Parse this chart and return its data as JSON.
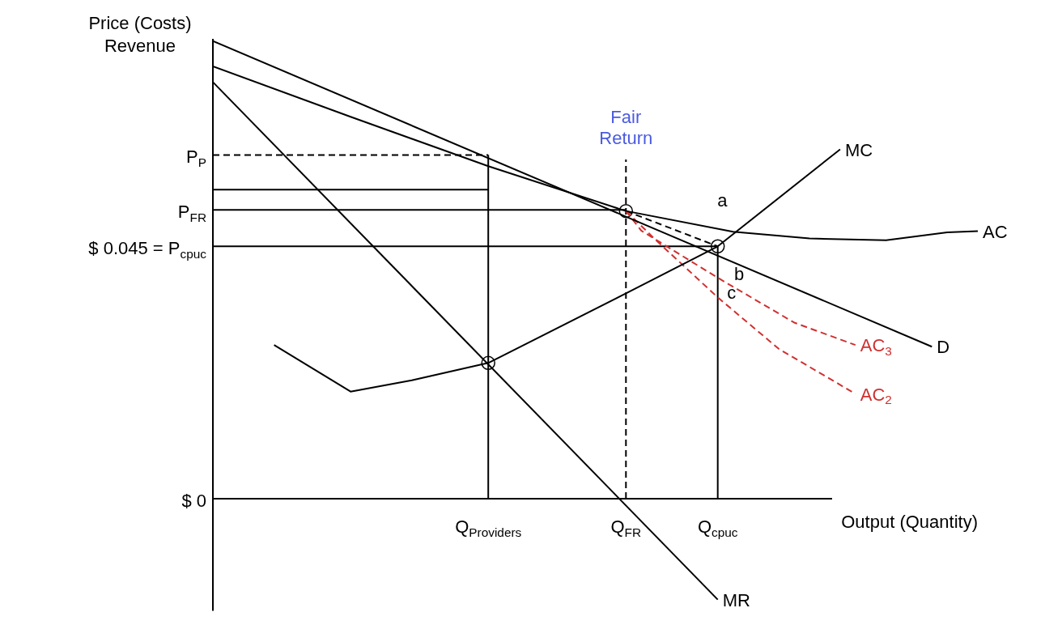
{
  "chart_data": {
    "type": "line",
    "ylabel": "Price (Costs) Revenue",
    "xlabel": "Output (Quantity)",
    "categories": [
      null,
      null,
      null,
      null,
      null,
      null,
      null,
      null,
      null,
      null,
      null,
      null,
      null,
      null,
      null,
      null,
      null,
      null,
      "Q$_{Providers}$",
      null,
      null,
      null,
      null,
      null,
      null,
      null,
      null,
      "Q$_{FR}$",
      null,
      null,
      null,
      null,
      null,
      "Q$_{cpuc}$",
      null,
      null,
      null,
      null,
      null,
      null,
      null,
      null,
      null,
      null,
      null,
      null,
      null,
      null,
      null,
      null,
      null
    ],
    "ylim": [
      -0.02,
      0.082
    ],
    "yticks": [
      {
        "value": 0,
        "label": "$ 0"
      },
      {
        "value": 0.045,
        "label": "$ 0.045 = P$_{cpuc}$"
      },
      {
        "value": 0.0515,
        "label": "P$_{FR}$"
      },
      {
        "value": 0.0613,
        "label": "P$_{P}$"
      }
    ],
    "legend": false,
    "series": [
      {
        "name": "D",
        "color": "#000000",
        "values": [
          0.0816,
          null,
          null,
          null,
          null,
          null,
          null,
          null,
          null,
          null,
          null,
          null,
          null,
          null,
          null,
          null,
          null,
          null,
          null,
          null,
          null,
          null,
          null,
          null,
          null,
          null,
          null,
          0.0503,
          null,
          null,
          null,
          null,
          null,
          null,
          null,
          null,
          null,
          null,
          null,
          null,
          null,
          null,
          null,
          null,
          null,
          null,
          null,
          0.0271,
          null,
          null,
          null
        ]
      },
      {
        "name": "AC",
        "color": "#000000",
        "values": [
          0.0771,
          null,
          null,
          null,
          null,
          null,
          null,
          null,
          null,
          0.0681,
          null,
          null,
          null,
          null,
          null,
          null,
          null,
          null,
          0.0593,
          null,
          null,
          null,
          null,
          null,
          null,
          null,
          null,
          0.0513,
          null,
          null,
          null,
          null,
          null,
          null,
          0.0476,
          null,
          null,
          null,
          null,
          0.0464,
          null,
          null,
          null,
          null,
          0.0461,
          null,
          null,
          null,
          0.0475,
          null,
          0.0477
        ]
      },
      {
        "name": "MR",
        "color": "#000000",
        "values": [
          0.0743,
          null,
          null,
          null,
          null,
          null,
          null,
          null,
          null,
          null,
          null,
          null,
          null,
          null,
          null,
          null,
          null,
          null,
          null,
          null,
          null,
          null,
          null,
          null,
          null,
          null,
          null,
          null,
          null,
          null,
          null,
          null,
          null,
          -0.018,
          null,
          null,
          null,
          null,
          null,
          null,
          null,
          null,
          null,
          null,
          null,
          null,
          null,
          null,
          null,
          null,
          null
        ]
      },
      {
        "name": "MC",
        "color": "#000000",
        "values": [
          null,
          null,
          null,
          null,
          0.0274,
          null,
          null,
          null,
          null,
          0.0191,
          null,
          null,
          null,
          0.0211,
          null,
          null,
          null,
          null,
          0.0242,
          null,
          null,
          null,
          null,
          null,
          null,
          null,
          null,
          0.0366,
          null,
          null,
          null,
          null,
          null,
          0.045,
          null,
          null,
          null,
          null,
          null,
          null,
          null,
          0.0623,
          null,
          null,
          null,
          null,
          null,
          null,
          null,
          null,
          null
        ]
      },
      {
        "name": "AC$_{3}$",
        "color": "#d03030",
        "line_style": "dashed",
        "values": [
          null,
          null,
          null,
          null,
          null,
          null,
          null,
          null,
          null,
          null,
          null,
          null,
          null,
          null,
          null,
          null,
          null,
          null,
          null,
          null,
          null,
          null,
          null,
          null,
          null,
          null,
          null,
          0.0513,
          0.0478,
          null,
          null,
          null,
          null,
          0.0394,
          null,
          null,
          null,
          null,
          0.0314,
          null,
          null,
          null,
          0.0274,
          null,
          null,
          null,
          null,
          null,
          null,
          null,
          null
        ]
      },
      {
        "name": "AC$_{2}$",
        "color": "#d03030",
        "line_style": "dashed",
        "values": [
          null,
          null,
          null,
          null,
          null,
          null,
          null,
          null,
          null,
          null,
          null,
          null,
          null,
          null,
          null,
          null,
          null,
          null,
          null,
          null,
          null,
          null,
          null,
          null,
          null,
          null,
          null,
          0.0513,
          null,
          0.046,
          null,
          null,
          null,
          0.0359,
          null,
          null,
          null,
          0.0267,
          null,
          null,
          null,
          null,
          0.0187,
          null,
          null,
          null,
          null,
          null,
          null,
          null,
          null
        ]
      },
      {
        "color": "#000000",
        "line_style": "dashed",
        "values": [
          null,
          null,
          null,
          null,
          null,
          null,
          null,
          null,
          null,
          null,
          null,
          null,
          null,
          null,
          null,
          null,
          null,
          null,
          null,
          null,
          null,
          null,
          null,
          null,
          null,
          null,
          null,
          0.0513,
          null,
          null,
          null,
          null,
          null,
          0.045,
          null,
          null,
          null,
          null,
          null,
          null,
          null,
          null,
          null,
          null,
          null,
          null,
          null,
          null,
          null,
          null,
          null
        ]
      },
      {
        "color": "#000000",
        "line_style": "dashed",
        "values": [
          0.0613,
          null,
          null,
          null,
          null,
          null,
          null,
          null,
          null,
          null,
          null,
          null,
          null,
          null,
          null,
          null,
          null,
          null,
          0.0613,
          null,
          null,
          null,
          null,
          null,
          null,
          null,
          null,
          null,
          null,
          null,
          null,
          null,
          null,
          null,
          null,
          null,
          null,
          null,
          null,
          null,
          null,
          null,
          null,
          null,
          null,
          null,
          null,
          null,
          null,
          null,
          null
        ]
      },
      {
        "color": "#000000",
        "values": [
          0.0551,
          null,
          null,
          null,
          null,
          null,
          null,
          null,
          null,
          null,
          null,
          null,
          null,
          null,
          null,
          null,
          null,
          null,
          0.0551,
          null,
          null,
          null,
          null,
          null,
          null,
          null,
          null,
          null,
          null,
          null,
          null,
          null,
          null,
          null,
          null,
          null,
          null,
          null,
          null,
          null,
          null,
          null,
          null,
          null,
          null,
          null,
          null,
          null,
          null,
          null,
          null
        ]
      },
      {
        "color": "#000000",
        "values": [
          0.0515,
          null,
          null,
          null,
          null,
          null,
          null,
          null,
          null,
          null,
          null,
          null,
          null,
          null,
          null,
          null,
          null,
          null,
          null,
          null,
          null,
          null,
          null,
          null,
          null,
          null,
          null,
          0.0515,
          null,
          null,
          null,
          null,
          null,
          null,
          null,
          null,
          null,
          null,
          null,
          null,
          null,
          null,
          null,
          null,
          null,
          null,
          null,
          null,
          null,
          null,
          null
        ]
      },
      {
        "color": "#000000",
        "values": [
          0.045,
          null,
          null,
          null,
          null,
          null,
          null,
          null,
          null,
          null,
          null,
          null,
          null,
          null,
          null,
          null,
          null,
          null,
          null,
          null,
          null,
          null,
          null,
          null,
          null,
          null,
          null,
          null,
          null,
          null,
          null,
          null,
          null,
          0.045,
          null,
          null,
          null,
          null,
          null,
          null,
          null,
          null,
          null,
          null,
          null,
          null,
          null,
          null,
          null,
          null,
          null
        ]
      },
      {
        "color": "#000000",
        "x": [
          "Q$_{Providers}$",
          "Q$_{Providers}$"
        ],
        "values": [
          0,
          0.0613
        ]
      },
      {
        "color": "#000000",
        "line_style": "dashed",
        "x": [
          "Q$_{FR}$",
          "Q$_{FR}$"
        ],
        "values": [
          0,
          0.0605
        ]
      },
      {
        "color": "#000000",
        "x": [
          "Q$_{cpuc}$",
          "Q$_{cpuc}$"
        ],
        "values": [
          0,
          0.045
        ]
      },
      {
        "type": "scatter",
        "marker": "circle",
        "color": "#000000",
        "x": [
          "Q$_{Providers}$",
          "Q$_{FR}$",
          "Q$_{cpuc}$"
        ],
        "values": [
          0.0242,
          0.0513,
          0.045
        ]
      }
    ],
    "annotations": [
      "Fair Return",
      "a",
      "b",
      "c"
    ]
  }
}
